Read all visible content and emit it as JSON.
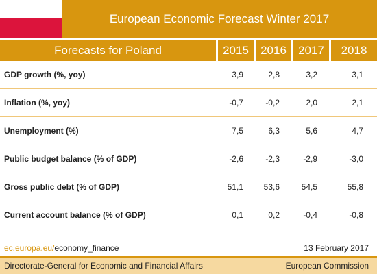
{
  "header": {
    "title": "European Economic Forecast Winter 2017"
  },
  "table": {
    "header": [
      "Forecasts for Poland",
      "2015",
      "2016",
      "2017",
      "2018"
    ],
    "rows": [
      [
        "GDP growth (%, yoy)",
        "3,9",
        "2,8",
        "3,2",
        "3,1"
      ],
      [
        "Inflation (%, yoy)",
        "-0,7",
        "-0,2",
        "2,0",
        "2,1"
      ],
      [
        "Unemployment (%)",
        "7,5",
        "6,3",
        "5,6",
        "4,7"
      ],
      [
        "Public budget balance (% of GDP)",
        "-2,6",
        "-2,3",
        "-2,9",
        "-3,0"
      ],
      [
        "Gross public debt (% of GDP)",
        "51,1",
        "53,6",
        "54,5",
        "55,8"
      ],
      [
        "Current account balance (% of GDP)",
        "0,1",
        "0,2",
        "-0,4",
        "-0,8"
      ]
    ]
  },
  "footer": {
    "link_domain": "ec.europa.eu/",
    "link_path": "economy_finance",
    "date": "13 February 2017"
  },
  "bottom": {
    "left": "Directorate-General for Economic and Financial Affairs",
    "right": "European Commission"
  }
}
